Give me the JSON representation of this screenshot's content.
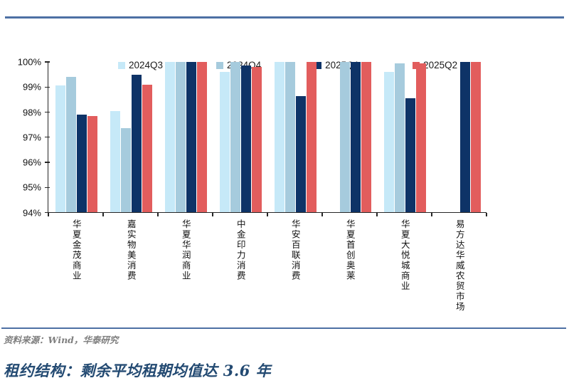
{
  "page": {
    "background": "#ffffff",
    "accent_line_color": "#4d70a4"
  },
  "chart_data": {
    "type": "bar",
    "title": "",
    "categories": [
      "华夏金茂商业",
      "嘉实物美消费",
      "华夏华润商业",
      "中金印力消费",
      "华安百联消费",
      "华夏首创奥莱",
      "华夏大悦城商业",
      "易方达华威农贸市场"
    ],
    "series": [
      {
        "name": "2024Q3",
        "color": "#c6e9f8",
        "values": [
          99.05,
          98.05,
          100,
          99.6,
          100,
          null,
          99.6,
          null
        ]
      },
      {
        "name": "2024Q4",
        "color": "#a6cbdd",
        "values": [
          99.4,
          97.35,
          100,
          100,
          100,
          100,
          99.95,
          null
        ]
      },
      {
        "name": "2025Q1",
        "color": "#0e3367",
        "values": [
          97.9,
          99.5,
          100,
          99.85,
          98.65,
          100,
          98.55,
          100
        ]
      },
      {
        "name": "2025Q2",
        "color": "#e25d5d",
        "values": [
          97.85,
          99.1,
          100,
          99.8,
          100,
          100,
          99.95,
          100
        ]
      }
    ],
    "ylabel": "",
    "xlabel": "",
    "ylim": [
      94,
      100
    ],
    "ytick_step": 1,
    "ytick_suffix": "%",
    "grid": false,
    "legend_position": "top",
    "axis_color": "#262626"
  },
  "footer": {
    "source": "资料来源：Wind，华泰研究",
    "color": "#7f7f7f"
  },
  "caption": {
    "title": "租约结构：剩余平均租期均值达 3.6 年",
    "color": "#234a72"
  }
}
